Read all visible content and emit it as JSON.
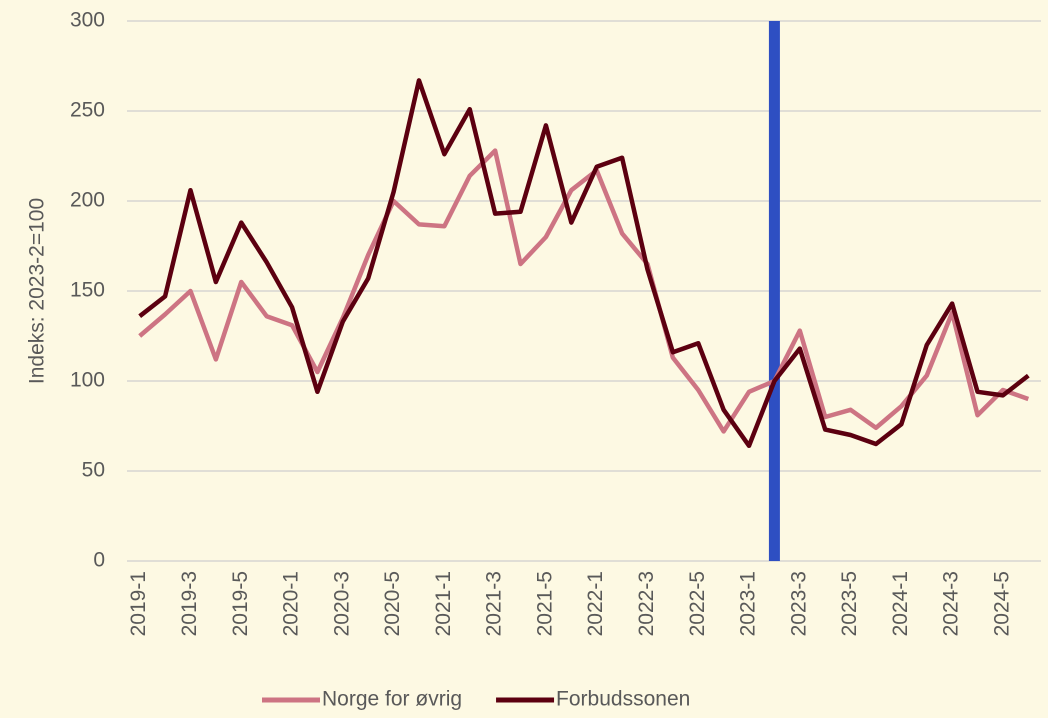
{
  "chart_data": {
    "type": "line",
    "y_label": "Indeks: 2023-2=100",
    "categories": [
      "2019-1",
      null,
      "2019-3",
      null,
      "2019-5",
      null,
      "2020-1",
      null,
      "2020-3",
      null,
      "2020-5",
      null,
      "2021-1",
      null,
      "2021-3",
      null,
      "2021-5",
      null,
      "2022-1",
      null,
      "2022-3",
      null,
      "2022-5",
      null,
      "2023-1",
      null,
      "2023-3",
      null,
      "2023-5",
      null,
      "2024-1",
      null,
      "2024-3",
      null,
      "2024-5",
      null
    ],
    "series": [
      {
        "name": "Norge for øvrig",
        "color": "#cd7483",
        "values": [
          125,
          137,
          150,
          112,
          155,
          136,
          131,
          105,
          135,
          170,
          200,
          187,
          186,
          214,
          228,
          165,
          180,
          206,
          217,
          182,
          165,
          113,
          95,
          72,
          94,
          100,
          128,
          80,
          84,
          74,
          86,
          103,
          138,
          81,
          95,
          90
        ]
      },
      {
        "name": "Forbudssonen",
        "color": "#5c0010",
        "values": [
          136,
          147,
          206,
          155,
          188,
          166,
          141,
          94,
          133,
          157,
          205,
          267,
          226,
          251,
          193,
          194,
          242,
          188,
          219,
          224,
          162,
          116,
          121,
          84,
          64,
          100,
          118,
          73,
          70,
          65,
          76,
          120,
          143,
          94,
          92,
          103
        ]
      }
    ],
    "reference_line": {
      "index": 25,
      "color": "#2e4fc2"
    },
    "ylim": [
      0,
      300
    ],
    "yticks": [
      0,
      50,
      100,
      150,
      200,
      250,
      300
    ],
    "grid": true,
    "legend": "bottom"
  }
}
